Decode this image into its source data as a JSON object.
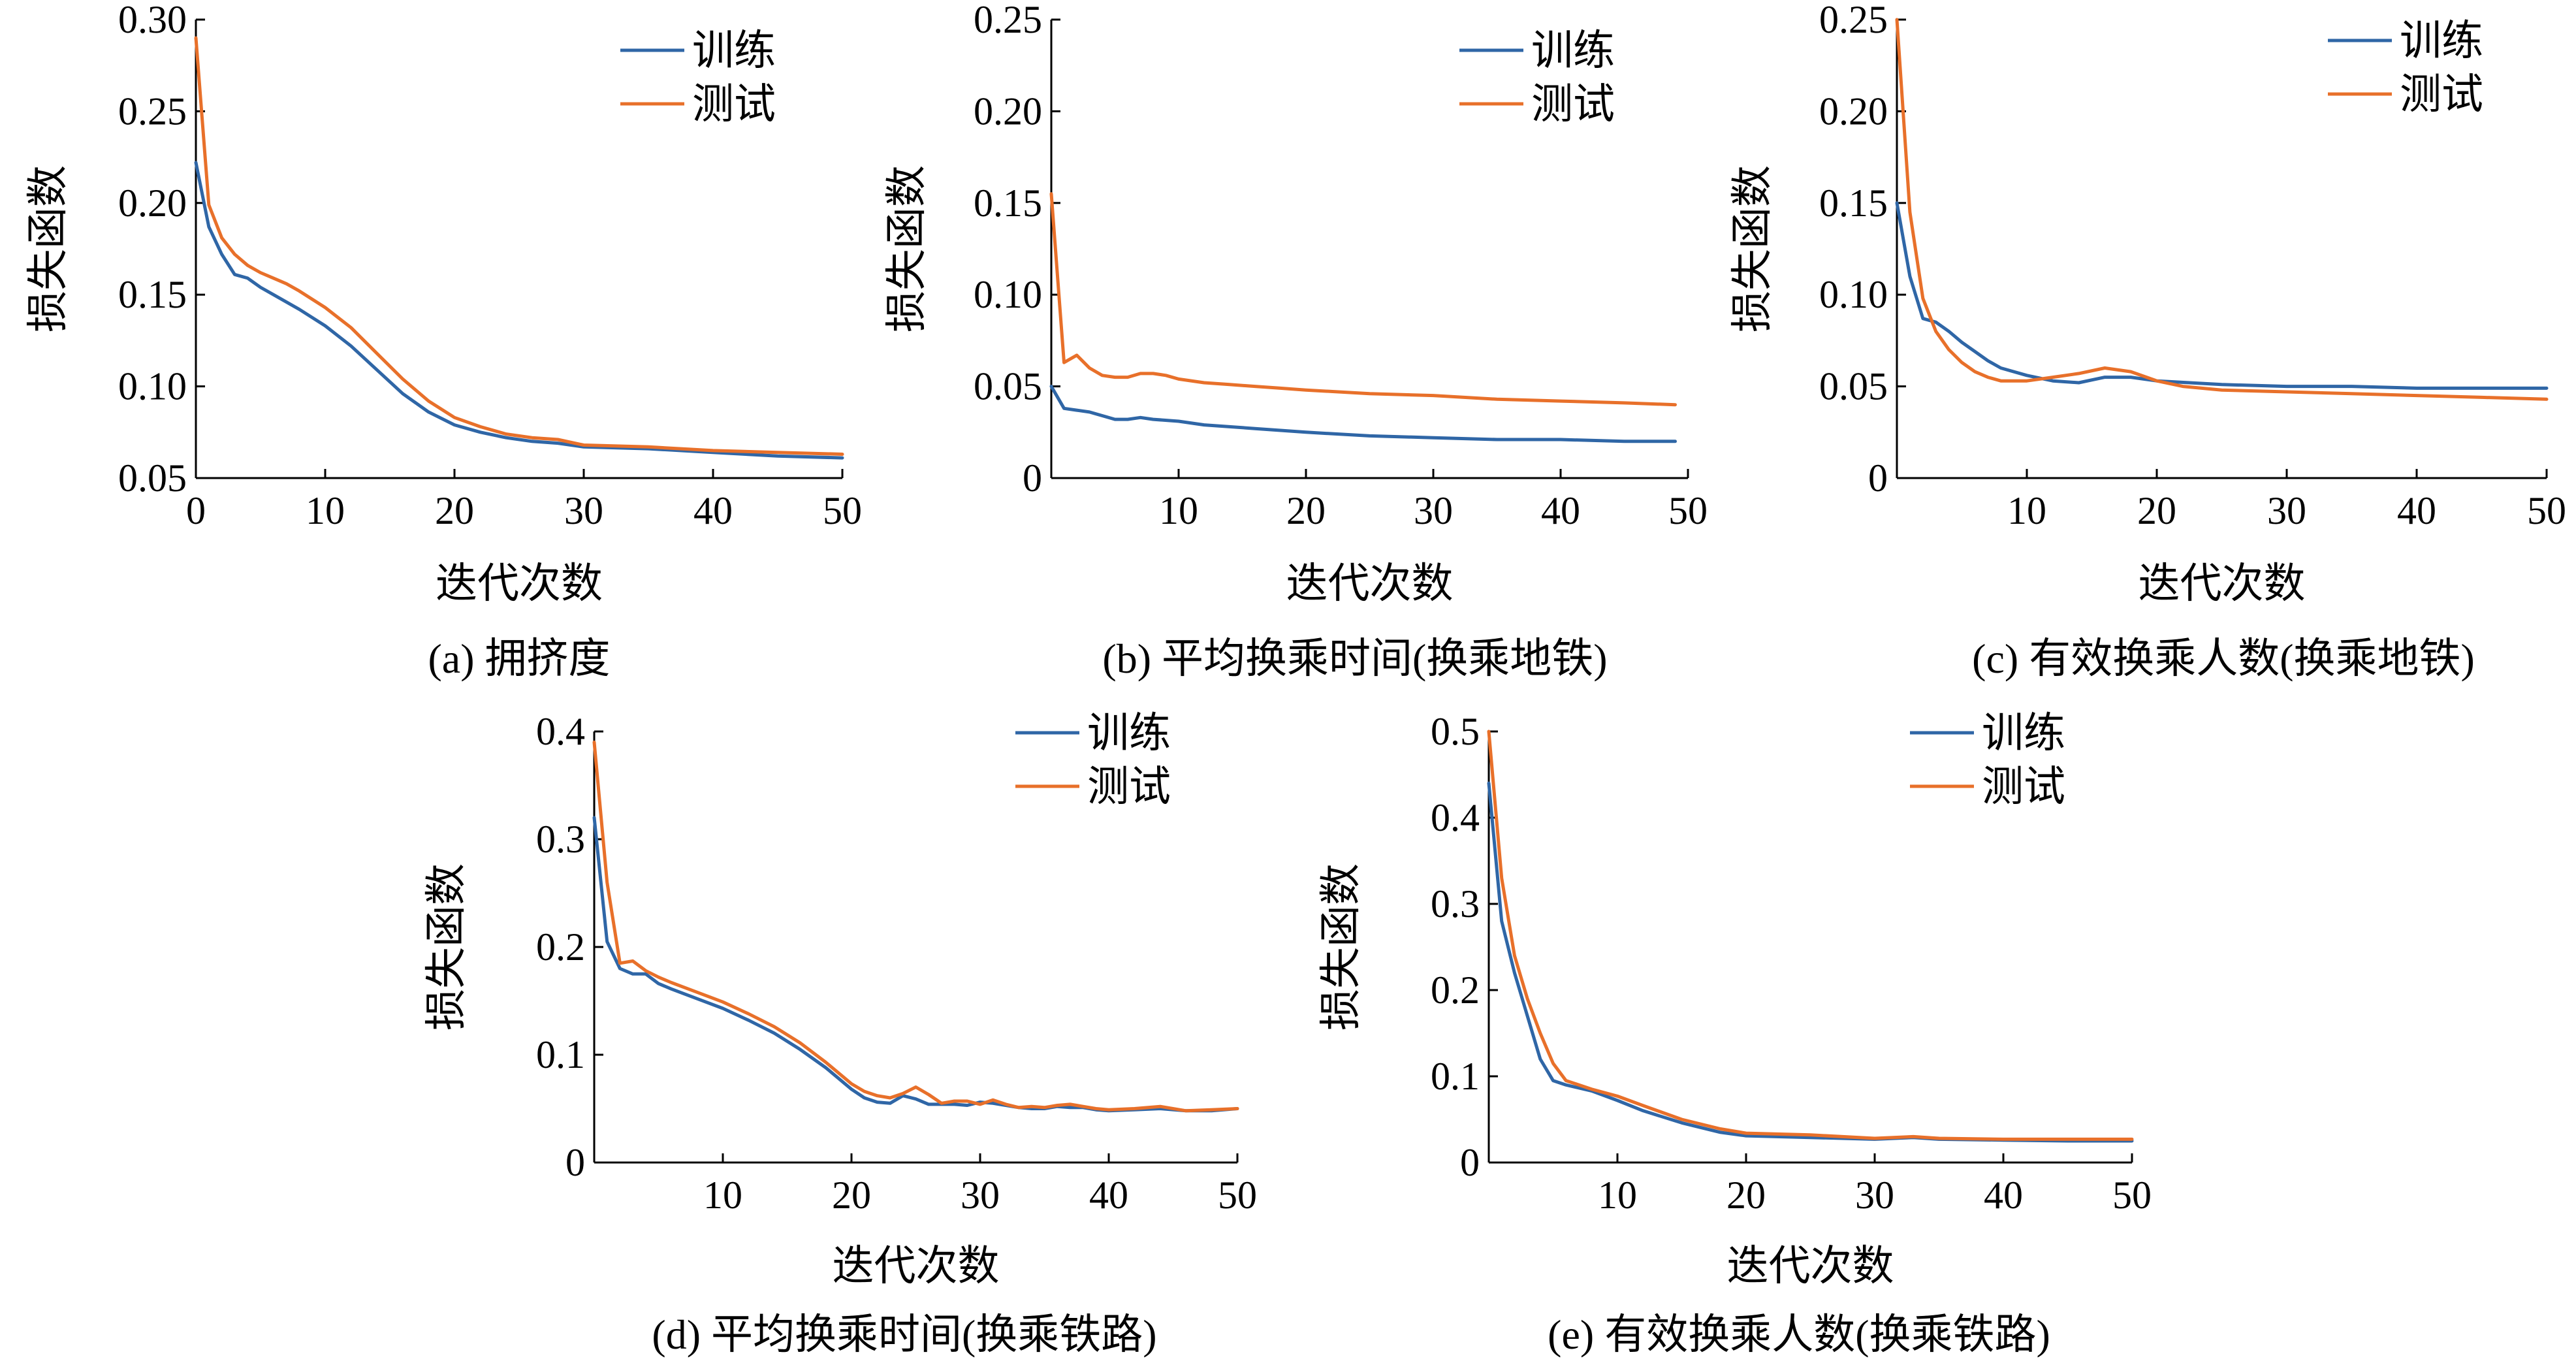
{
  "colors": {
    "train": "#2f66a6",
    "test": "#e8702a"
  },
  "chart_data": [
    {
      "id": "a",
      "type": "line",
      "caption": "(a) 拥挤度",
      "xlabel": "迭代次数",
      "ylabel": "损失函数",
      "xlim": [
        0,
        50
      ],
      "ylim": [
        0.05,
        0.3
      ],
      "xticks": [
        0,
        10,
        20,
        30,
        40,
        50
      ],
      "xtick_labels": [
        "0",
        "10",
        "20",
        "30",
        "40",
        "50"
      ],
      "yticks": [
        0.05,
        0.1,
        0.15,
        0.2,
        0.25,
        0.3
      ],
      "ytick_labels": [
        "0.05",
        "0.10",
        "0.15",
        "0.20",
        "0.25",
        "0.30"
      ],
      "legend": {
        "placement": "top-right",
        "entries": [
          "训练",
          "测试"
        ]
      },
      "series": [
        {
          "name": "训练",
          "x": [
            0,
            1,
            2,
            3,
            4,
            5,
            6,
            7,
            8,
            10,
            12,
            14,
            16,
            18,
            20,
            22,
            24,
            26,
            28,
            30,
            35,
            40,
            45,
            50
          ],
          "y": [
            0.222,
            0.187,
            0.172,
            0.161,
            0.159,
            0.154,
            0.15,
            0.146,
            0.142,
            0.133,
            0.122,
            0.109,
            0.096,
            0.086,
            0.079,
            0.075,
            0.072,
            0.07,
            0.069,
            0.067,
            0.066,
            0.064,
            0.062,
            0.061
          ]
        },
        {
          "name": "测试",
          "x": [
            0,
            1,
            2,
            3,
            4,
            5,
            6,
            7,
            8,
            10,
            12,
            14,
            16,
            18,
            20,
            22,
            24,
            26,
            28,
            30,
            35,
            40,
            45,
            50
          ],
          "y": [
            0.29,
            0.199,
            0.181,
            0.172,
            0.166,
            0.162,
            0.159,
            0.156,
            0.152,
            0.143,
            0.132,
            0.118,
            0.104,
            0.092,
            0.083,
            0.078,
            0.074,
            0.072,
            0.071,
            0.068,
            0.067,
            0.065,
            0.064,
            0.063
          ]
        }
      ]
    },
    {
      "id": "b",
      "type": "line",
      "caption": "(b) 平均换乘时间(换乘地铁)",
      "xlabel": "迭代次数",
      "ylabel": "损失函数",
      "xlim": [
        0,
        50
      ],
      "ylim": [
        0,
        0.25
      ],
      "xticks": [
        10,
        20,
        30,
        40,
        50
      ],
      "xtick_labels": [
        "10",
        "20",
        "30",
        "40",
        "50"
      ],
      "yticks": [
        0,
        0.05,
        0.1,
        0.15,
        0.2,
        0.25
      ],
      "ytick_labels": [
        "0",
        "0.05",
        "0.10",
        "0.15",
        "0.20",
        "0.25"
      ],
      "legend": {
        "placement": "top-right",
        "entries": [
          "训练",
          "测试"
        ]
      },
      "series": [
        {
          "name": "训练",
          "x": [
            0,
            1,
            2,
            3,
            4,
            5,
            6,
            7,
            8,
            10,
            12,
            14,
            16,
            18,
            20,
            25,
            30,
            35,
            40,
            45,
            49
          ],
          "y": [
            0.05,
            0.038,
            0.037,
            0.036,
            0.034,
            0.032,
            0.032,
            0.033,
            0.032,
            0.031,
            0.029,
            0.028,
            0.027,
            0.026,
            0.025,
            0.023,
            0.022,
            0.021,
            0.021,
            0.02,
            0.02
          ]
        },
        {
          "name": "测试",
          "x": [
            0,
            1,
            2,
            3,
            4,
            5,
            6,
            7,
            8,
            9,
            10,
            12,
            14,
            16,
            18,
            20,
            25,
            30,
            35,
            40,
            45,
            49
          ],
          "y": [
            0.155,
            0.063,
            0.067,
            0.06,
            0.056,
            0.055,
            0.055,
            0.057,
            0.057,
            0.056,
            0.054,
            0.052,
            0.051,
            0.05,
            0.049,
            0.048,
            0.046,
            0.045,
            0.043,
            0.042,
            0.041,
            0.04
          ]
        }
      ]
    },
    {
      "id": "c",
      "type": "line",
      "caption": "(c) 有效换乘人数(换乘地铁)",
      "xlabel": "迭代次数",
      "ylabel": "损失函数",
      "xlim": [
        0,
        50
      ],
      "ylim": [
        0,
        0.25
      ],
      "xticks": [
        10,
        20,
        30,
        40,
        50
      ],
      "xtick_labels": [
        "10",
        "20",
        "30",
        "40",
        "50"
      ],
      "yticks": [
        0,
        0.05,
        0.1,
        0.15,
        0.2,
        0.25
      ],
      "ytick_labels": [
        "0",
        "0.05",
        "0.10",
        "0.15",
        "0.20",
        "0.25"
      ],
      "legend": {
        "placement": "top-right",
        "entries": [
          "训练",
          "测试"
        ]
      },
      "series": [
        {
          "name": "训练",
          "x": [
            0,
            1,
            2,
            3,
            4,
            5,
            6,
            7,
            8,
            10,
            12,
            14,
            16,
            18,
            20,
            25,
            30,
            35,
            40,
            45,
            50
          ],
          "y": [
            0.15,
            0.11,
            0.087,
            0.085,
            0.08,
            0.074,
            0.069,
            0.064,
            0.06,
            0.056,
            0.053,
            0.052,
            0.055,
            0.055,
            0.053,
            0.051,
            0.05,
            0.05,
            0.049,
            0.049,
            0.049
          ]
        },
        {
          "name": "测试",
          "x": [
            0,
            1,
            2,
            3,
            4,
            5,
            6,
            7,
            8,
            10,
            12,
            14,
            16,
            18,
            20,
            22,
            25,
            30,
            35,
            40,
            45,
            50
          ],
          "y": [
            0.25,
            0.145,
            0.098,
            0.08,
            0.07,
            0.063,
            0.058,
            0.055,
            0.053,
            0.053,
            0.055,
            0.057,
            0.06,
            0.058,
            0.053,
            0.05,
            0.048,
            0.047,
            0.046,
            0.045,
            0.044,
            0.043
          ]
        }
      ]
    },
    {
      "id": "d",
      "type": "line",
      "caption": "(d) 平均换乘时间(换乘铁路)",
      "xlabel": "迭代次数",
      "ylabel": "损失函数",
      "xlim": [
        0,
        50
      ],
      "ylim": [
        0,
        0.4
      ],
      "xticks": [
        10,
        20,
        30,
        40,
        50
      ],
      "xtick_labels": [
        "10",
        "20",
        "30",
        "40",
        "50"
      ],
      "yticks": [
        0,
        0.1,
        0.2,
        0.3,
        0.4
      ],
      "ytick_labels": [
        "0",
        "0.1",
        "0.2",
        "0.3",
        "0.4"
      ],
      "legend": {
        "placement": "top-right",
        "entries": [
          "训练",
          "测试"
        ]
      },
      "series": [
        {
          "name": "训练",
          "x": [
            0,
            1,
            2,
            3,
            4,
            5,
            6,
            8,
            10,
            12,
            14,
            16,
            18,
            20,
            21,
            22,
            23,
            24,
            25,
            26,
            27,
            28,
            29,
            30,
            31,
            32,
            33,
            34,
            35,
            36,
            37,
            38,
            39,
            40,
            42,
            44,
            46,
            48,
            50
          ],
          "y": [
            0.32,
            0.205,
            0.18,
            0.175,
            0.175,
            0.166,
            0.161,
            0.152,
            0.143,
            0.132,
            0.12,
            0.105,
            0.088,
            0.068,
            0.06,
            0.056,
            0.055,
            0.062,
            0.059,
            0.054,
            0.054,
            0.054,
            0.053,
            0.056,
            0.055,
            0.053,
            0.051,
            0.05,
            0.05,
            0.052,
            0.051,
            0.051,
            0.049,
            0.048,
            0.049,
            0.05,
            0.048,
            0.048,
            0.05
          ]
        },
        {
          "name": "测试",
          "x": [
            0,
            1,
            2,
            3,
            4,
            5,
            6,
            8,
            10,
            12,
            14,
            16,
            18,
            20,
            21,
            22,
            23,
            24,
            25,
            26,
            27,
            28,
            29,
            30,
            31,
            32,
            33,
            34,
            35,
            36,
            37,
            38,
            39,
            40,
            42,
            44,
            46,
            48,
            50
          ],
          "y": [
            0.39,
            0.26,
            0.185,
            0.187,
            0.178,
            0.172,
            0.167,
            0.158,
            0.149,
            0.138,
            0.126,
            0.111,
            0.093,
            0.073,
            0.066,
            0.062,
            0.06,
            0.064,
            0.07,
            0.063,
            0.055,
            0.057,
            0.057,
            0.054,
            0.058,
            0.054,
            0.051,
            0.052,
            0.051,
            0.053,
            0.054,
            0.052,
            0.05,
            0.049,
            0.05,
            0.052,
            0.048,
            0.049,
            0.05
          ]
        }
      ]
    },
    {
      "id": "e",
      "type": "line",
      "caption": "(e) 有效换乘人数(换乘铁路)",
      "xlabel": "迭代次数",
      "ylabel": "损失函数",
      "xlim": [
        0,
        50
      ],
      "ylim": [
        0,
        0.5
      ],
      "xticks": [
        10,
        20,
        30,
        40,
        50
      ],
      "xtick_labels": [
        "10",
        "20",
        "30",
        "40",
        "50"
      ],
      "yticks": [
        0,
        0.1,
        0.2,
        0.3,
        0.4,
        0.5
      ],
      "ytick_labels": [
        "0",
        "0.1",
        "0.2",
        "0.3",
        "0.4",
        "0.5"
      ],
      "legend": {
        "placement": "top-right",
        "entries": [
          "训练",
          "测试"
        ]
      },
      "series": [
        {
          "name": "训练",
          "x": [
            0,
            1,
            2,
            3,
            4,
            5,
            6,
            8,
            10,
            12,
            15,
            18,
            20,
            25,
            30,
            33,
            35,
            40,
            45,
            50
          ],
          "y": [
            0.44,
            0.28,
            0.22,
            0.17,
            0.12,
            0.095,
            0.09,
            0.083,
            0.072,
            0.06,
            0.046,
            0.035,
            0.031,
            0.029,
            0.027,
            0.029,
            0.027,
            0.026,
            0.025,
            0.025
          ]
        },
        {
          "name": "测试",
          "x": [
            0,
            1,
            2,
            3,
            4,
            5,
            6,
            8,
            10,
            12,
            15,
            18,
            20,
            25,
            30,
            33,
            35,
            40,
            45,
            50
          ],
          "y": [
            0.5,
            0.33,
            0.24,
            0.19,
            0.15,
            0.115,
            0.095,
            0.085,
            0.077,
            0.066,
            0.05,
            0.039,
            0.034,
            0.032,
            0.028,
            0.03,
            0.028,
            0.027,
            0.027,
            0.027
          ]
        }
      ]
    }
  ]
}
